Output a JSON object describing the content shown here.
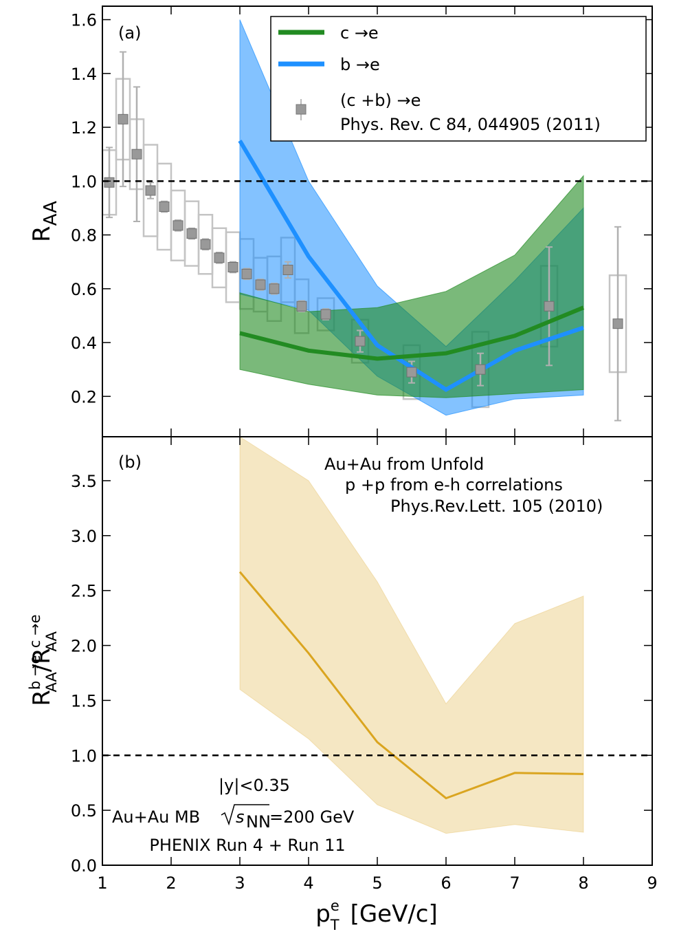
{
  "chart_data": [
    {
      "type": "line",
      "panel_label": "(a)",
      "ylabel_main": "R",
      "ylabel_sub": "AA",
      "xlim": [
        1,
        9
      ],
      "ylim": [
        0.05,
        1.65
      ],
      "yticks": [
        0.2,
        0.4,
        0.6,
        0.8,
        1.0,
        1.2,
        1.4,
        1.6
      ],
      "reference_line": 1.0,
      "legend_position": "top-right",
      "legend": [
        {
          "label": "c →e",
          "color": "#228B22"
        },
        {
          "label": "b →e",
          "color": "#1E90FF"
        },
        {
          "label": "(c +b) →e",
          "label2": "Phys. Rev. C 84, 044905 (2011)",
          "color": "#999999"
        }
      ],
      "bands": [
        {
          "name": "b →e",
          "color": "#1E90FF",
          "x": [
            3,
            4,
            5,
            6,
            7,
            8
          ],
          "center": [
            1.15,
            0.72,
            0.39,
            0.225,
            0.37,
            0.455
          ],
          "upper": [
            1.6,
            1.0,
            0.61,
            0.385,
            0.63,
            0.9
          ],
          "lower": [
            0.58,
            0.52,
            0.275,
            0.13,
            0.19,
            0.205
          ]
        },
        {
          "name": "c →e",
          "color": "#228B22",
          "x": [
            3,
            4,
            5,
            6,
            7,
            8
          ],
          "center": [
            0.435,
            0.37,
            0.34,
            0.36,
            0.425,
            0.53
          ],
          "upper": [
            0.585,
            0.515,
            0.53,
            0.59,
            0.725,
            1.02
          ],
          "lower": [
            0.3,
            0.245,
            0.205,
            0.195,
            0.21,
            0.225
          ]
        }
      ],
      "points": {
        "name": "(c +b) →e",
        "x": [
          1.1,
          1.3,
          1.5,
          1.7,
          1.9,
          2.1,
          2.3,
          2.5,
          2.7,
          2.9,
          3.1,
          3.3,
          3.5,
          3.7,
          3.9,
          4.25,
          4.75,
          5.5,
          6.5,
          7.5,
          8.5
        ],
        "y": [
          0.995,
          1.23,
          1.1,
          0.965,
          0.905,
          0.835,
          0.805,
          0.765,
          0.715,
          0.68,
          0.655,
          0.615,
          0.6,
          0.67,
          0.535,
          0.505,
          0.405,
          0.29,
          0.3,
          0.535,
          0.47
        ],
        "stat": [
          0.13,
          0.25,
          0.25,
          0.03,
          0.02,
          0.02,
          0.02,
          0.02,
          0.02,
          0.02,
          0.02,
          0.02,
          0.02,
          0.03,
          0.02,
          0.02,
          0.04,
          0.04,
          0.06,
          0.22,
          0.36
        ],
        "sys": [
          0.12,
          0.15,
          0.13,
          0.17,
          0.16,
          0.13,
          0.12,
          0.11,
          0.11,
          0.13,
          0.13,
          0.1,
          0.12,
          0.12,
          0.1,
          0.06,
          0.08,
          0.1,
          0.14,
          0.15,
          0.18
        ]
      }
    },
    {
      "type": "line",
      "panel_label": "(b)",
      "xlabel_main": "p",
      "xlabel_sup": "e",
      "xlabel_sub": "T",
      "xlabel_unit": "[GeV/c]",
      "ylabel_num": "R",
      "ylabel_num_sup": "b →e",
      "ylabel_num_sub": "AA",
      "ylabel_den": "R",
      "ylabel_den_sup": "c →e",
      "ylabel_den_sub": "AA",
      "xlim": [
        1,
        9
      ],
      "ylim": [
        0.0,
        3.9
      ],
      "xticks": [
        1,
        2,
        3,
        4,
        5,
        6,
        7,
        8,
        9
      ],
      "yticks": [
        0.0,
        0.5,
        1.0,
        1.5,
        2.0,
        2.5,
        3.0,
        3.5
      ],
      "reference_line": 1.0,
      "annotations_top": [
        "Au+Au from Unfold",
        "p +p from e-h correlations",
        "Phys.Rev.Lett. 105 (2010)"
      ],
      "annotations_bottom": {
        "line1": "|y|<0.35",
        "line2_pre": "Au+Au MB ",
        "line2_sqrt": "s",
        "line2_sub": "NN",
        "line2_post": " =200 GeV",
        "line3": "PHENIX Run 4 + Run 11"
      },
      "band": {
        "color": "#DAA520",
        "x": [
          3,
          4,
          5,
          6,
          7,
          8
        ],
        "center": [
          2.67,
          1.93,
          1.12,
          0.61,
          0.84,
          0.83
        ],
        "upper": [
          3.9,
          3.5,
          2.58,
          1.47,
          2.2,
          2.45
        ],
        "lower": [
          1.6,
          1.15,
          0.55,
          0.29,
          0.37,
          0.3
        ]
      }
    }
  ]
}
